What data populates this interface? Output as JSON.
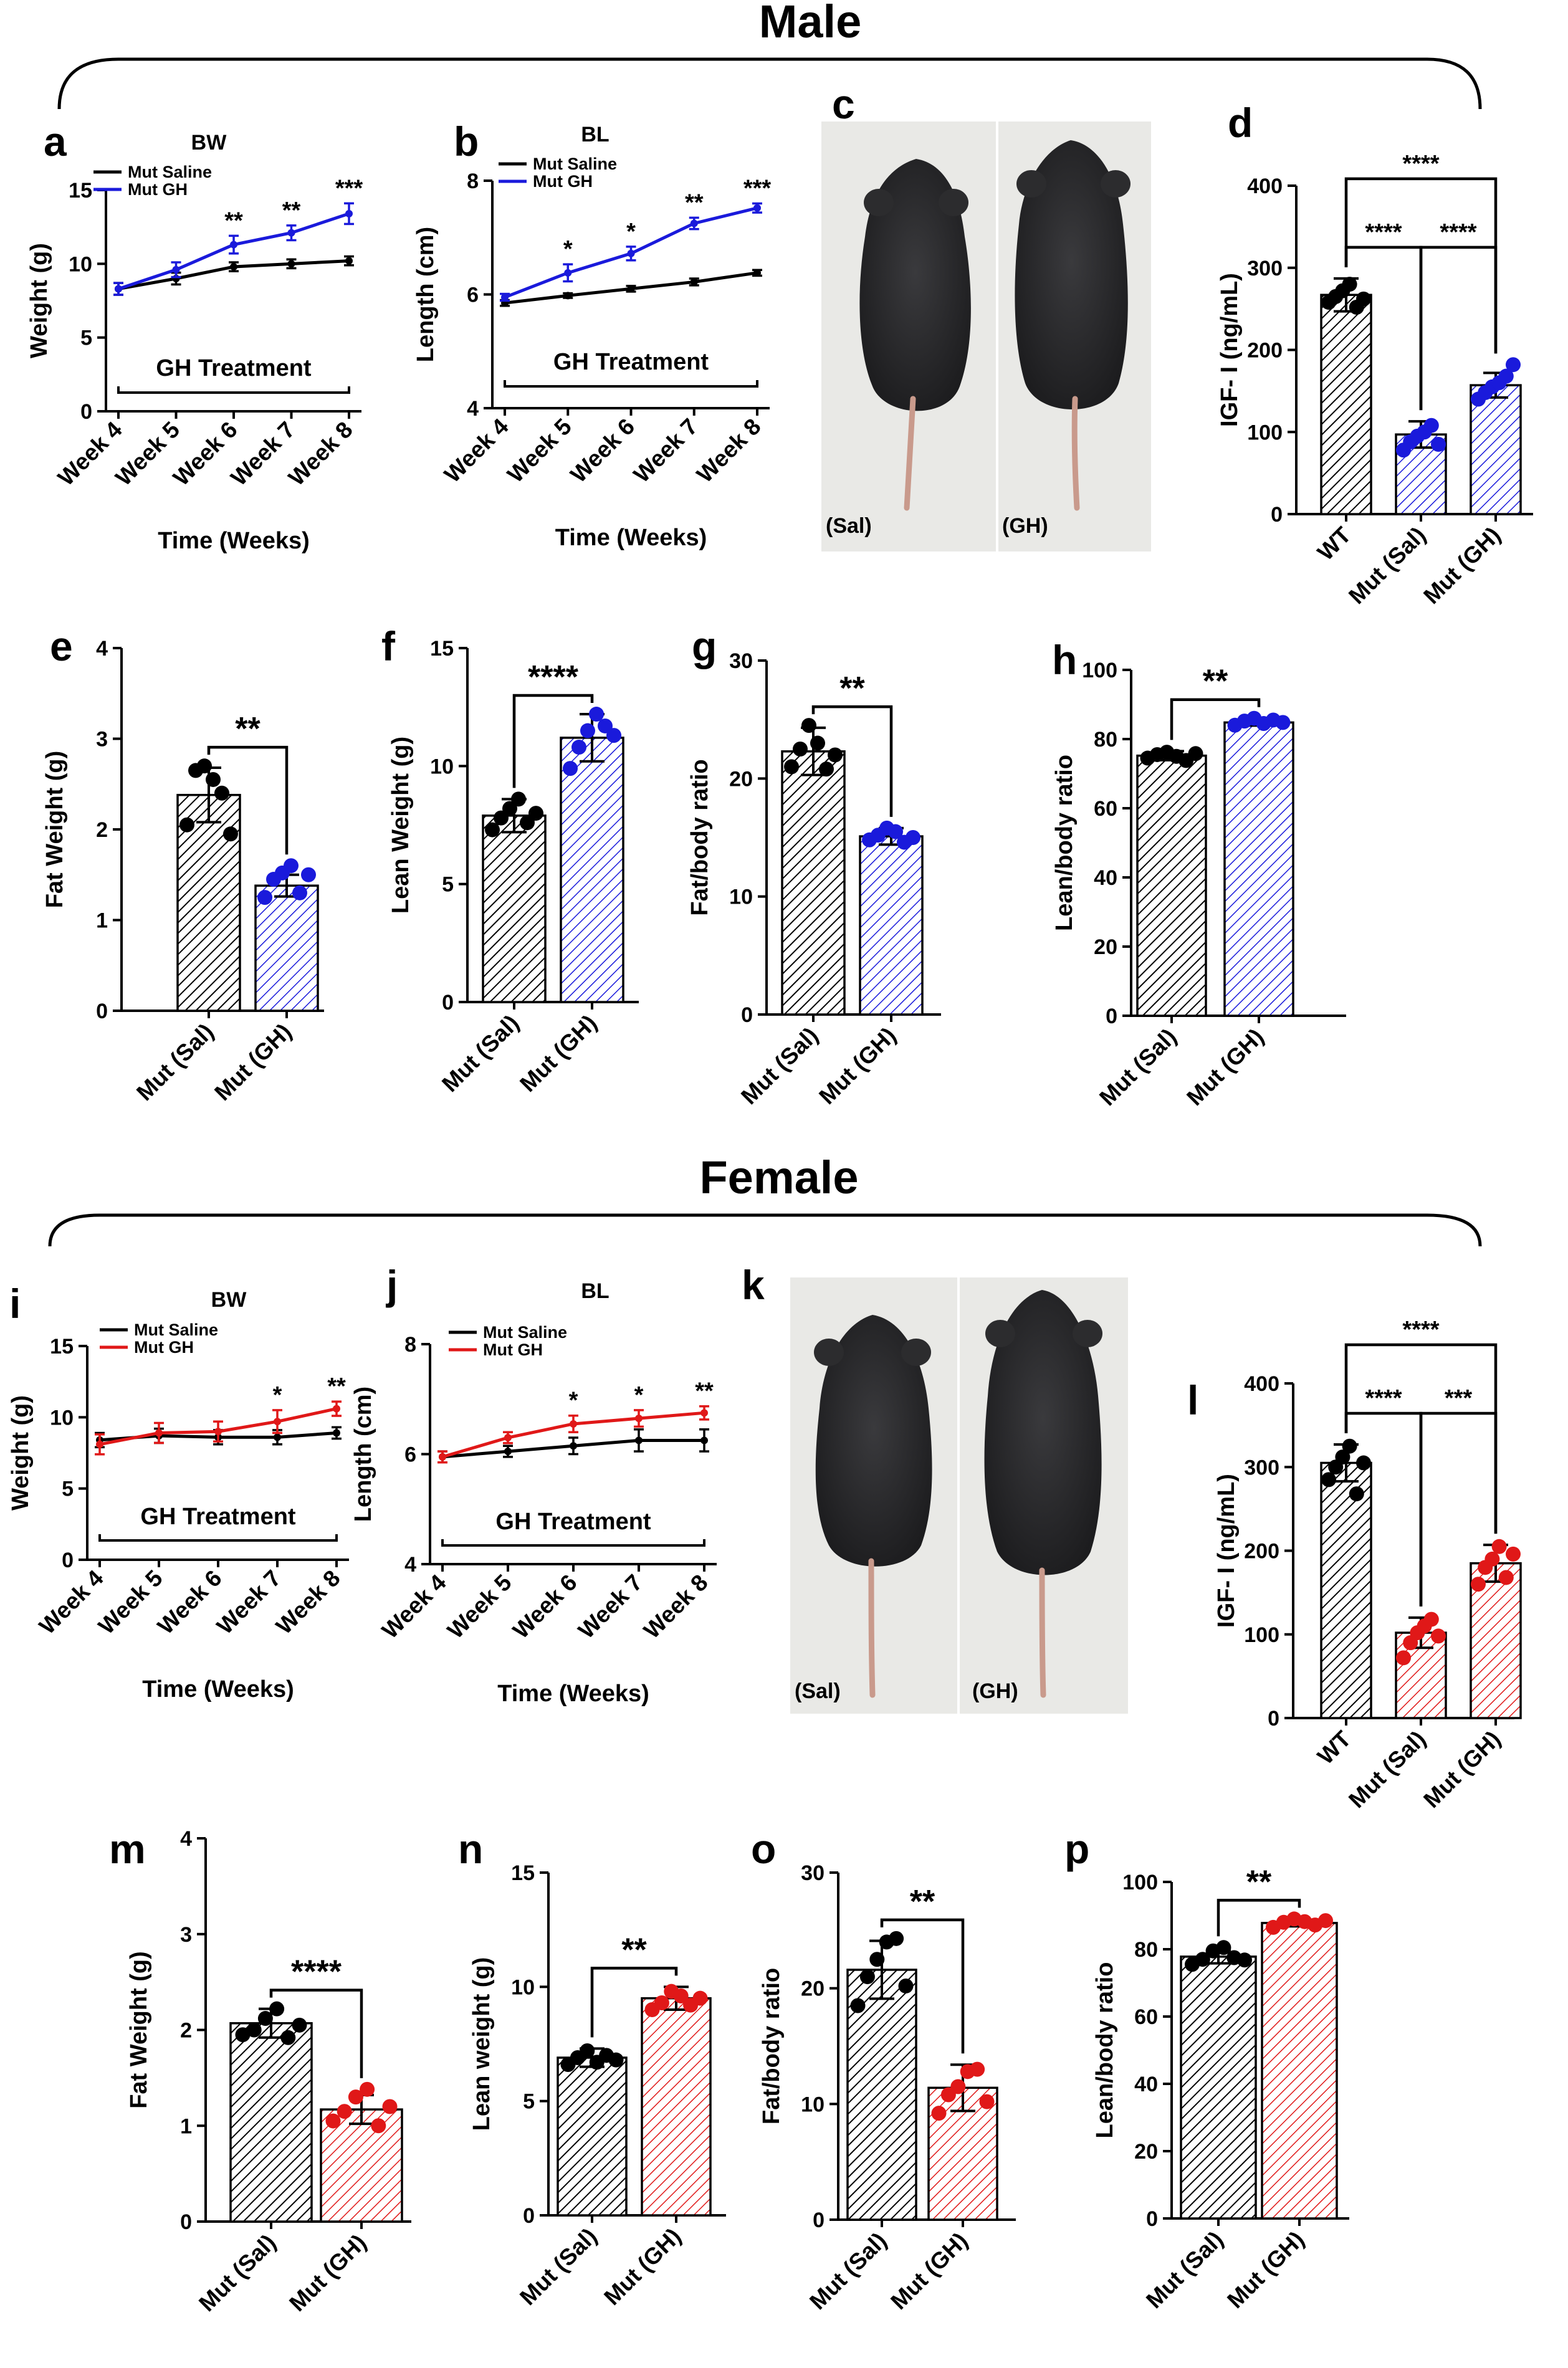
{
  "sections": {
    "male": "Male",
    "female": "Female"
  },
  "colors": {
    "black": "#000000",
    "blue": "#1a1adb",
    "red": "#e01818",
    "photo_bg": "#e9e9e6",
    "mouse": "#2a2a2c",
    "tail": "#c99a8c"
  },
  "photos": [
    {
      "panel": "c",
      "left_label": "(Sal)",
      "right_label": "(GH)"
    },
    {
      "panel": "k",
      "left_label": "(Sal)",
      "right_label": "(GH)"
    }
  ],
  "chart_data": [
    {
      "panel": "a",
      "type": "line",
      "title": "BW",
      "xlabel": "Time (Weeks)",
      "ylabel": "Weight (g)",
      "categories": [
        "Week 4",
        "Week 5",
        "Week 6",
        "Week 7",
        "Week 8"
      ],
      "ylim": [
        0,
        15
      ],
      "yticks": [
        0,
        5,
        10,
        15
      ],
      "series": [
        {
          "name": "Mut Saline",
          "color": "black",
          "values": [
            8.3,
            9.0,
            9.8,
            10.0,
            10.2
          ],
          "err": [
            0.4,
            0.4,
            0.3,
            0.3,
            0.3
          ]
        },
        {
          "name": "Mut GH",
          "color": "blue",
          "values": [
            8.3,
            9.6,
            11.3,
            12.1,
            13.4
          ],
          "err": [
            0.4,
            0.5,
            0.6,
            0.5,
            0.7
          ]
        }
      ],
      "annotations": [
        "",
        "",
        "**",
        "**",
        "***"
      ],
      "treatment_label": "GH Treatment"
    },
    {
      "panel": "b",
      "type": "line",
      "title": "BL",
      "xlabel": "Time (Weeks)",
      "ylabel": "Length (cm)",
      "categories": [
        "Week 4",
        "Week 5",
        "Week 6",
        "Week 7",
        "Week 8"
      ],
      "ylim": [
        4,
        8
      ],
      "yticks": [
        4,
        6,
        8
      ],
      "series": [
        {
          "name": "Mut Saline",
          "color": "black",
          "values": [
            5.85,
            5.98,
            6.1,
            6.22,
            6.38
          ],
          "err": [
            0.05,
            0.04,
            0.05,
            0.06,
            0.05
          ]
        },
        {
          "name": "Mut GH",
          "color": "blue",
          "values": [
            5.95,
            6.38,
            6.72,
            7.25,
            7.52
          ],
          "err": [
            0.06,
            0.15,
            0.12,
            0.1,
            0.08
          ]
        }
      ],
      "annotations": [
        "",
        "*",
        "*",
        "**",
        "***"
      ],
      "treatment_label": "GH Treatment"
    },
    {
      "panel": "d",
      "type": "bar",
      "xlabel": "",
      "ylabel": "IGF- I (ng/mL)",
      "categories": [
        "WT",
        "Mut (Sal)",
        "Mut (GH)"
      ],
      "colors": [
        "black",
        "blue",
        "blue"
      ],
      "values": [
        267,
        97,
        157
      ],
      "err": [
        20,
        16,
        15
      ],
      "points": [
        [
          258,
          265,
          272,
          280,
          252,
          262
        ],
        [
          78,
          88,
          95,
          100,
          108,
          85
        ],
        [
          140,
          148,
          155,
          160,
          168,
          182
        ]
      ],
      "ylim": [
        0,
        400
      ],
      "yticks": [
        0,
        100,
        200,
        300,
        400
      ],
      "comparisons": [
        {
          "pair": [
            0,
            1
          ],
          "label": "****"
        },
        {
          "pair": [
            1,
            2
          ],
          "label": "****"
        },
        {
          "pair": [
            0,
            2
          ],
          "label": "****"
        }
      ]
    },
    {
      "panel": "e",
      "type": "bar",
      "xlabel": "",
      "ylabel": "Fat Weight (g)",
      "categories": [
        "Mut (Sal)",
        "Mut (GH)"
      ],
      "colors": [
        "black",
        "blue"
      ],
      "values": [
        2.38,
        1.38
      ],
      "err": [
        0.3,
        0.12
      ],
      "points": [
        [
          2.05,
          2.65,
          2.7,
          2.55,
          2.4,
          1.95
        ],
        [
          1.25,
          1.45,
          1.52,
          1.6,
          1.3,
          1.5
        ]
      ],
      "ylim": [
        0,
        4
      ],
      "yticks": [
        0,
        1,
        2,
        3,
        4
      ],
      "comparisons": [
        {
          "pair": [
            0,
            1
          ],
          "label": "**"
        }
      ]
    },
    {
      "panel": "f",
      "type": "bar",
      "xlabel": "",
      "ylabel": "Lean Weight (g)",
      "categories": [
        "Mut (Sal)",
        "Mut (GH)"
      ],
      "colors": [
        "black",
        "blue"
      ],
      "values": [
        7.9,
        11.2
      ],
      "err": [
        0.7,
        1.0
      ],
      "points": [
        [
          7.3,
          7.8,
          8.2,
          8.6,
          7.6,
          8.0
        ],
        [
          9.9,
          10.8,
          11.5,
          12.2,
          11.7,
          11.3
        ]
      ],
      "ylim": [
        0,
        15
      ],
      "yticks": [
        0,
        5,
        10,
        15
      ],
      "comparisons": [
        {
          "pair": [
            0,
            1
          ],
          "label": "****"
        }
      ]
    },
    {
      "panel": "g",
      "type": "bar",
      "xlabel": "",
      "ylabel": "Fat/body ratio",
      "categories": [
        "Mut (Sal)",
        "Mut (GH)"
      ],
      "colors": [
        "black",
        "blue"
      ],
      "values": [
        22.3,
        15.1
      ],
      "err": [
        2.0,
        0.7
      ],
      "points": [
        [
          21.0,
          22.5,
          24.5,
          23.0,
          20.8,
          22.0
        ],
        [
          14.8,
          15.2,
          15.8,
          15.5,
          14.6,
          15.0
        ]
      ],
      "ylim": [
        0,
        30
      ],
      "yticks": [
        0,
        10,
        20,
        30
      ],
      "comparisons": [
        {
          "pair": [
            0,
            1
          ],
          "label": "**"
        }
      ]
    },
    {
      "panel": "h",
      "type": "bar",
      "xlabel": "",
      "ylabel": "Lean/body  ratio",
      "categories": [
        "Mut (Sal)",
        "Mut (GH)"
      ],
      "colors": [
        "black",
        "blue"
      ],
      "values": [
        75.2,
        84.8
      ],
      "err": [
        1.3,
        0.9
      ],
      "points": [
        [
          74.5,
          75.5,
          76.2,
          75.0,
          73.8,
          75.8
        ],
        [
          84.0,
          85.2,
          86.0,
          84.5,
          85.5,
          84.8
        ]
      ],
      "ylim": [
        0,
        100
      ],
      "yticks": [
        0,
        20,
        40,
        60,
        80,
        100
      ],
      "comparisons": [
        {
          "pair": [
            0,
            1
          ],
          "label": "**"
        }
      ]
    },
    {
      "panel": "i",
      "type": "line",
      "title": "BW",
      "xlabel": "Time (Weeks)",
      "ylabel": "Weight (g)",
      "categories": [
        "Week 4",
        "Week 5",
        "Week 6",
        "Week 7",
        "Week 8"
      ],
      "ylim": [
        0,
        15
      ],
      "yticks": [
        0,
        5,
        10,
        15
      ],
      "series": [
        {
          "name": "Mut Saline",
          "color": "black",
          "values": [
            8.4,
            8.7,
            8.6,
            8.6,
            8.9
          ],
          "err": [
            0.5,
            0.5,
            0.5,
            0.5,
            0.4
          ]
        },
        {
          "name": "Mut GH",
          "color": "red",
          "values": [
            8.1,
            8.9,
            9.0,
            9.7,
            10.6
          ],
          "err": [
            0.7,
            0.7,
            0.7,
            0.8,
            0.5
          ]
        }
      ],
      "annotations": [
        "",
        "",
        "",
        "*",
        "**"
      ],
      "treatment_label": "GH Treatment"
    },
    {
      "panel": "j",
      "type": "line",
      "title": "BL",
      "xlabel": "Time (Weeks)",
      "ylabel": "Length (cm)",
      "categories": [
        "Week 4",
        "Week 5",
        "Week 6",
        "Week 7",
        "Week 8"
      ],
      "ylim": [
        4,
        8
      ],
      "yticks": [
        4,
        6,
        8
      ],
      "series": [
        {
          "name": "Mut Saline",
          "color": "black",
          "values": [
            5.95,
            6.05,
            6.15,
            6.25,
            6.25
          ],
          "err": [
            0.1,
            0.1,
            0.15,
            0.2,
            0.2
          ]
        },
        {
          "name": "Mut GH",
          "color": "red",
          "values": [
            5.95,
            6.3,
            6.55,
            6.65,
            6.75
          ],
          "err": [
            0.1,
            0.1,
            0.15,
            0.15,
            0.12
          ]
        }
      ],
      "annotations": [
        "",
        "",
        "*",
        "*",
        "**"
      ],
      "treatment_label": "GH Treatment"
    },
    {
      "panel": "l",
      "type": "bar",
      "xlabel": "",
      "ylabel": "IGF- I (ng/mL)",
      "categories": [
        "WT",
        "Mut (Sal)",
        "Mut (GH)"
      ],
      "colors": [
        "black",
        "red",
        "red"
      ],
      "values": [
        305,
        102,
        185
      ],
      "err": [
        22,
        18,
        22
      ],
      "points": [
        [
          285,
          300,
          312,
          325,
          268,
          305
        ],
        [
          72,
          90,
          102,
          110,
          118,
          98
        ],
        [
          160,
          180,
          190,
          205,
          168,
          196
        ]
      ],
      "ylim": [
        0,
        400
      ],
      "yticks": [
        0,
        100,
        200,
        300,
        400
      ],
      "comparisons": [
        {
          "pair": [
            0,
            1
          ],
          "label": "****"
        },
        {
          "pair": [
            1,
            2
          ],
          "label": "***"
        },
        {
          "pair": [
            0,
            2
          ],
          "label": "****"
        }
      ]
    },
    {
      "panel": "m",
      "type": "bar",
      "xlabel": "",
      "ylabel": "Fat Weight (g)",
      "categories": [
        "Mut (Sal)",
        "Mut (GH)"
      ],
      "colors": [
        "black",
        "red"
      ],
      "values": [
        2.07,
        1.17
      ],
      "err": [
        0.15,
        0.15
      ],
      "points": [
        [
          1.95,
          2.0,
          2.12,
          2.22,
          1.92,
          2.05
        ],
        [
          1.05,
          1.15,
          1.3,
          1.38,
          1.0,
          1.2
        ]
      ],
      "ylim": [
        0,
        4
      ],
      "yticks": [
        0,
        1,
        2,
        3,
        4
      ],
      "comparisons": [
        {
          "pair": [
            0,
            1
          ],
          "label": "****"
        }
      ]
    },
    {
      "panel": "n",
      "type": "bar",
      "xlabel": "",
      "ylabel": "Lean weight (g)",
      "categories": [
        "Mut (Sal)",
        "Mut (GH)"
      ],
      "colors": [
        "black",
        "red"
      ],
      "values": [
        6.9,
        9.5
      ],
      "err": [
        0.4,
        0.5
      ],
      "points": [
        [
          6.6,
          6.9,
          7.2,
          6.7,
          7.0,
          6.8
        ],
        [
          9.0,
          9.3,
          9.8,
          9.6,
          9.2,
          9.5
        ]
      ],
      "ylim": [
        0,
        15
      ],
      "yticks": [
        0,
        5,
        10,
        15
      ],
      "comparisons": [
        {
          "pair": [
            0,
            1
          ],
          "label": "**"
        }
      ]
    },
    {
      "panel": "o",
      "type": "bar",
      "xlabel": "",
      "ylabel": "Fat/body ratio",
      "categories": [
        "Mut (Sal)",
        "Mut (GH)"
      ],
      "colors": [
        "black",
        "red"
      ],
      "values": [
        21.6,
        11.4
      ],
      "err": [
        2.5,
        2.0
      ],
      "points": [
        [
          18.5,
          21.0,
          22.5,
          24.0,
          24.3,
          20.2
        ],
        [
          9.2,
          10.8,
          11.5,
          12.8,
          13.0,
          10.2
        ]
      ],
      "ylim": [
        0,
        30
      ],
      "yticks": [
        0,
        10,
        20,
        30
      ],
      "comparisons": [
        {
          "pair": [
            0,
            1
          ],
          "label": "**"
        }
      ]
    },
    {
      "panel": "p",
      "type": "bar",
      "xlabel": "",
      "ylabel": "Lean/body ratio",
      "categories": [
        "Mut (Sal)",
        "Mut (GH)"
      ],
      "colors": [
        "black",
        "red"
      ],
      "values": [
        77.8,
        87.8
      ],
      "err": [
        2.0,
        1.0
      ],
      "points": [
        [
          75.5,
          77.0,
          79.5,
          80.5,
          77.5,
          76.8
        ],
        [
          86.5,
          88.0,
          89.0,
          88.2,
          87.2,
          88.5
        ]
      ],
      "ylim": [
        0,
        100
      ],
      "yticks": [
        0,
        20,
        40,
        60,
        80,
        100
      ],
      "comparisons": [
        {
          "pair": [
            0,
            1
          ],
          "label": "**"
        }
      ]
    }
  ]
}
